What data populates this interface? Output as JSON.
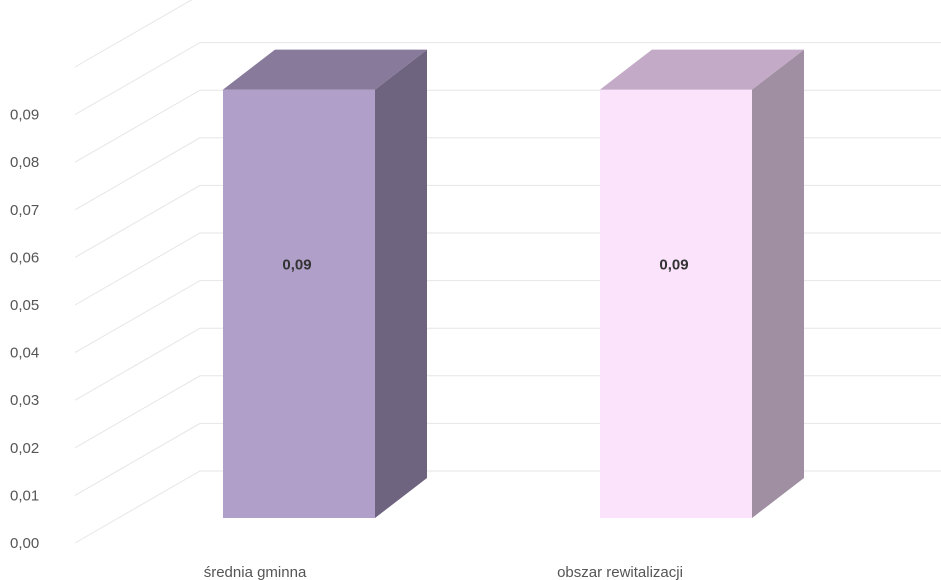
{
  "chart_data": {
    "type": "bar",
    "categories": [
      "średnia gminna",
      "obszar rewitalizacji"
    ],
    "values": [
      0.09,
      0.09
    ],
    "data_labels": [
      "0,09",
      "0,09"
    ],
    "y_ticks": [
      "0,00",
      "0,01",
      "0,02",
      "0,03",
      "0,04",
      "0,05",
      "0,06",
      "0,07",
      "0,08",
      "0,09"
    ],
    "ylim": [
      0,
      0.1
    ],
    "grid": true,
    "three_d": true,
    "title": "",
    "xlabel": "",
    "ylabel": "",
    "bar_colors": [
      {
        "front": "#b09fc8",
        "side": "#6f6480",
        "top": "#877a9a"
      },
      {
        "front": "#fbe3fb",
        "side": "#a08ea2",
        "top": "#c3aac6"
      }
    ]
  }
}
